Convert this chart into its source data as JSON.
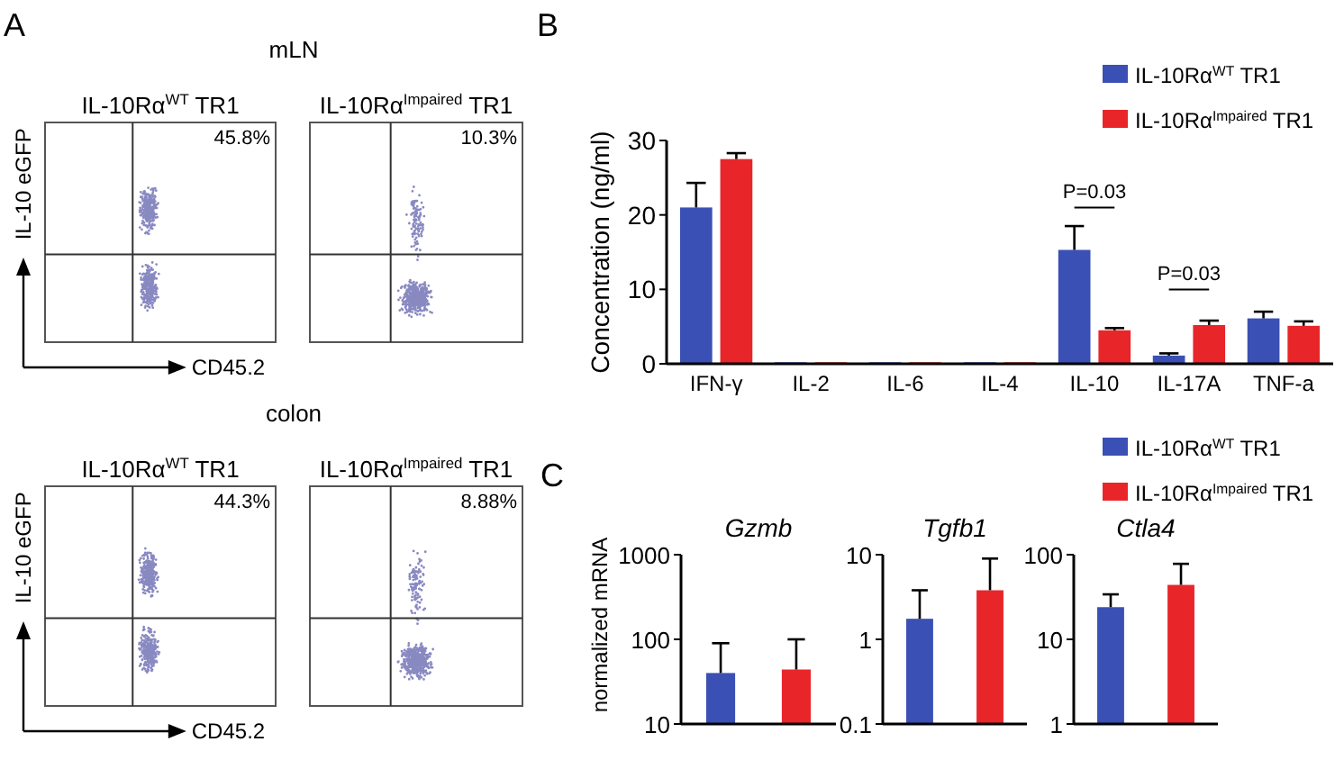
{
  "chart_data": [
    {
      "type": "other",
      "title": "IL-10Rα$^{WT}$ TR1",
      "subtitle": "mLN",
      "xlabel": "CD45.2",
      "ylabel": "IL-10 eGFP",
      "annotations": [
        "A",
        "45.8%"
      ]
    },
    {
      "type": "other",
      "title": "IL-10Rα$^{Impaired}$ TR1",
      "annotations": [
        "10.3%"
      ]
    },
    {
      "type": "other",
      "title": "IL-10Rα$^{WT}$ TR1",
      "subtitle": "colon",
      "xlabel": "CD45.2",
      "ylabel": "IL-10 eGFP",
      "annotations": [
        "44.3%"
      ]
    },
    {
      "type": "other",
      "title": "IL-10Rα$^{Impaired}$ TR1",
      "annotations": [
        "8.88%"
      ]
    },
    {
      "type": "bar",
      "ylabel": "Concentration (ng/ml)",
      "categories": [
        "IFN-γ",
        "IL-2",
        "IL-6",
        "IL-4",
        "IL-10",
        "IL-17A",
        "TNF-a"
      ],
      "ylim": [
        0,
        30
      ],
      "yticks": [
        0,
        10,
        20,
        30
      ],
      "legend": "top right",
      "annotations": [
        "B",
        "P=0.03",
        "P=0.03"
      ],
      "series": [
        {
          "name": "IL-10Rα$^{WT}$ TR1",
          "color": "#3a50b4",
          "values": [
            21,
            0.2,
            0.2,
            0.2,
            15.3,
            1.1,
            6.1
          ],
          "errors": [
            [
              21,
              24.3
            ],
            null,
            null,
            null,
            [
              15.3,
              18.5
            ],
            [
              1.1,
              1.4
            ],
            [
              6.1,
              7
            ]
          ]
        },
        {
          "name": "IL-10Rα$^{Impaired}$ TR1",
          "color": "#e8262a",
          "values": [
            27.5,
            0.2,
            0.2,
            0.2,
            4.5,
            5.2,
            5.1
          ],
          "errors": [
            [
              27.5,
              28.3
            ],
            null,
            null,
            null,
            [
              4.5,
              4.8
            ],
            [
              5.2,
              5.8
            ],
            [
              5.1,
              5.7
            ]
          ]
        }
      ]
    },
    {
      "type": "bar",
      "title": "Gzmb",
      "ylabel": "normalized mRNA",
      "categories": [
        null,
        null
      ],
      "log": true,
      "ylim": [
        10,
        1000
      ],
      "yticks": [
        10,
        100,
        1000
      ],
      "annotations": [
        "C"
      ],
      "series": [
        {
          "color": "#3a50b4",
          "values": [
            40,
            null
          ],
          "errors": [
            [
              40,
              90
            ],
            null
          ]
        },
        {
          "color": "#e8262a",
          "values": [
            null,
            44
          ],
          "errors": [
            null,
            [
              44,
              100
            ]
          ]
        }
      ]
    },
    {
      "type": "bar",
      "title": "Tgfb1",
      "categories": [
        null,
        null
      ],
      "log": true,
      "ylim": [
        0.1,
        10
      ],
      "yticks": [
        0.1,
        1,
        10
      ],
      "series": [
        {
          "color": "#3a50b4",
          "values": [
            1.75,
            null
          ],
          "errors": [
            [
              1.75,
              3.8
            ],
            null
          ]
        },
        {
          "color": "#e8262a",
          "values": [
            null,
            3.8
          ],
          "errors": [
            null,
            [
              3.8,
              9
            ]
          ]
        }
      ]
    },
    {
      "type": "bar",
      "title": "Ctla4",
      "categories": [
        null,
        null
      ],
      "log": true,
      "ylim": [
        1,
        100
      ],
      "yticks": [
        1,
        10,
        100
      ],
      "legend": "top right",
      "series": [
        {
          "name": "IL-10Rα$^{WT}$ TR1",
          "color": "#3a50b4",
          "values": [
            24,
            null
          ],
          "errors": [
            [
              24,
              34
            ],
            null
          ]
        },
        {
          "name": "IL-10Rα$^{Impaired}$ TR1",
          "color": "#e8262a",
          "values": [
            null,
            44
          ],
          "errors": [
            null,
            [
              44,
              78
            ]
          ]
        }
      ]
    }
  ]
}
